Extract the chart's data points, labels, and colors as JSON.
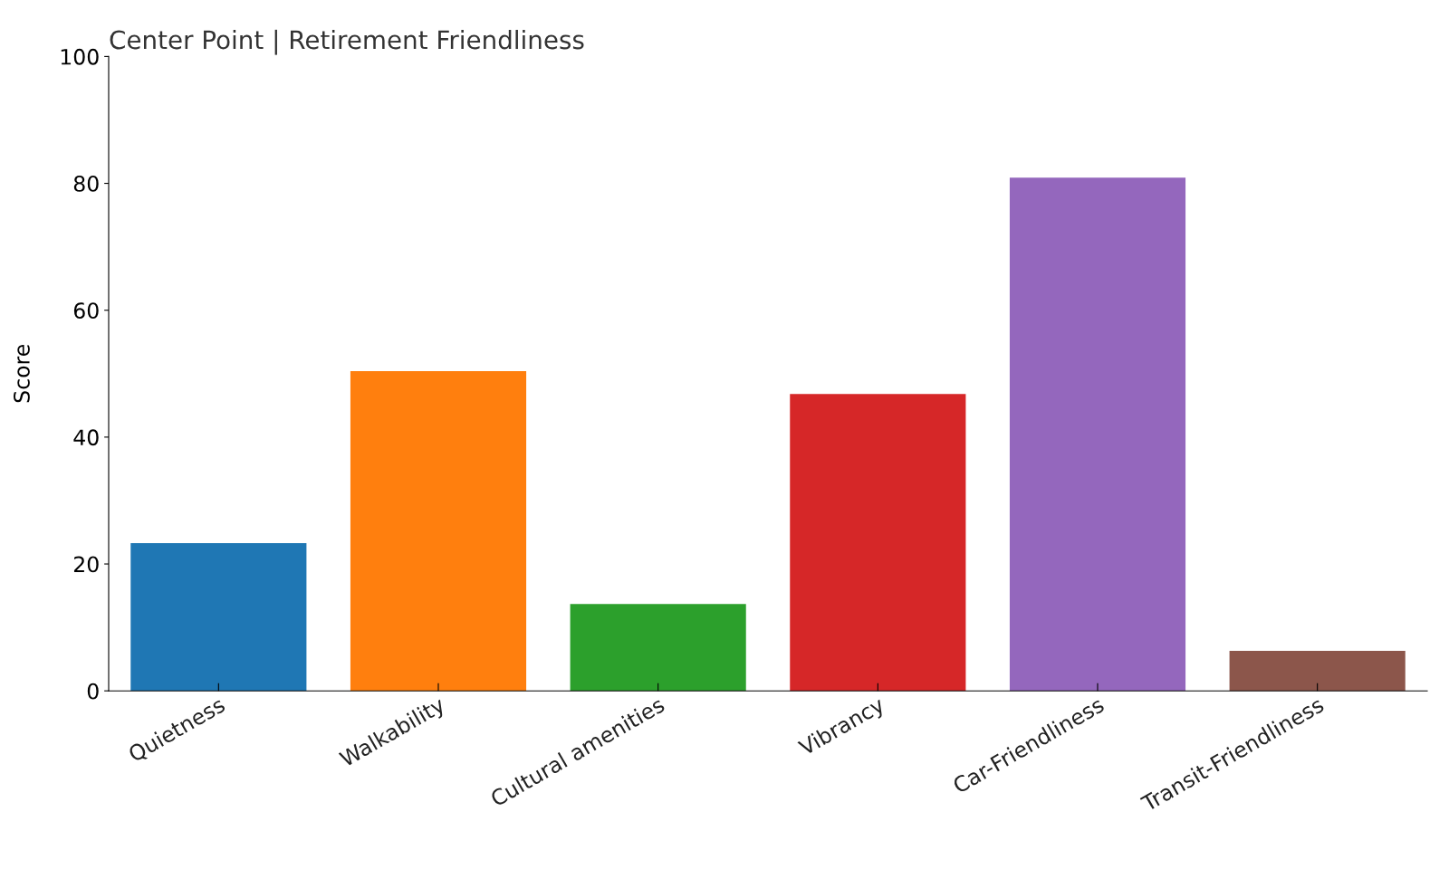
{
  "chart_data": {
    "type": "bar",
    "title": "Center Point | Retirement Friendliness",
    "ylabel": "Score",
    "categories": [
      "Quietness",
      "Walkability",
      "Cultural amenities",
      "Vibrancy",
      "Car-Friendliness",
      "Transit-Friendliness"
    ],
    "values": [
      23.3,
      50.4,
      13.7,
      46.8,
      80.9,
      6.3
    ],
    "colors": [
      "#1f77b4",
      "#ff7f0e",
      "#2ca02c",
      "#d62728",
      "#9467bd",
      "#8c564b"
    ],
    "ylim": [
      0,
      100
    ],
    "yticks": [
      0,
      20,
      40,
      60,
      80,
      100
    ],
    "grid": false,
    "legend": false
  }
}
